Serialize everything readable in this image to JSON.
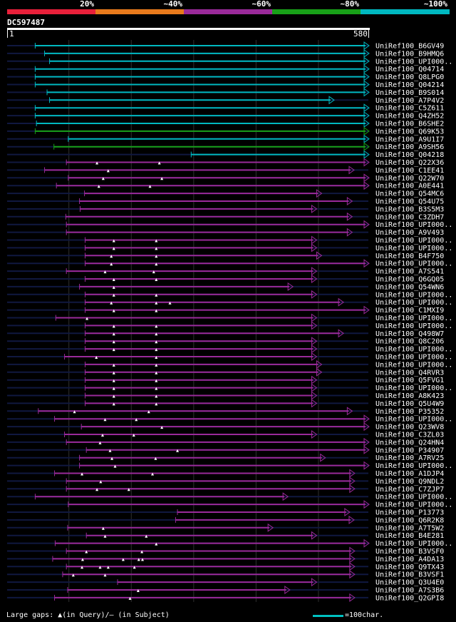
{
  "legend": {
    "segments": [
      {
        "label": "20%",
        "color": "#e8203a"
      },
      {
        "label": "~40%",
        "color": "#e87a1c"
      },
      {
        "label": "~60%",
        "color": "#9a2a9a"
      },
      {
        "label": "~80%",
        "color": "#18a018"
      },
      {
        "label": "~100%",
        "color": "#00b8c0"
      }
    ]
  },
  "query": {
    "id": "DC597487",
    "start": "1",
    "end": "580",
    "length": 580
  },
  "colors": {
    "background": "#000000",
    "grid": "#303030",
    "unaligned": "#101840",
    "text": "#ffffff"
  },
  "hits": [
    {
      "label": "UniRef100_B6GV49",
      "start": 46,
      "end": 580,
      "cls": 4,
      "gaps": []
    },
    {
      "label": "UniRef100_B9HMQ6",
      "start": 61,
      "end": 580,
      "cls": 4,
      "gaps": []
    },
    {
      "label": "UniRef100_UPI000..",
      "start": 69,
      "end": 580,
      "cls": 4,
      "gaps": []
    },
    {
      "label": "UniRef100_Q04714",
      "start": 46,
      "end": 580,
      "cls": 4,
      "gaps": []
    },
    {
      "label": "UniRef100_Q8LPG0",
      "start": 46,
      "end": 580,
      "cls": 4,
      "gaps": []
    },
    {
      "label": "UniRef100_Q04214",
      "start": 46,
      "end": 580,
      "cls": 4,
      "gaps": []
    },
    {
      "label": "UniRef100_B9S014",
      "start": 65,
      "end": 580,
      "cls": 4,
      "gaps": []
    },
    {
      "label": "UniRef100_A7P4V2",
      "start": 69,
      "end": 524,
      "cls": 4,
      "gaps": []
    },
    {
      "label": "UniRef100_C5Z611",
      "start": 46,
      "end": 580,
      "cls": 4,
      "gaps": []
    },
    {
      "label": "UniRef100_Q4ZH52",
      "start": 46,
      "end": 580,
      "cls": 4,
      "gaps": []
    },
    {
      "label": "UniRef100_B6SHE2",
      "start": 48,
      "end": 580,
      "cls": 4,
      "gaps": []
    },
    {
      "label": "UniRef100_Q69K53",
      "start": 46,
      "end": 580,
      "cls": 3,
      "gaps": []
    },
    {
      "label": "UniRef100_A9U1I7",
      "start": 99,
      "end": 580,
      "cls": 4,
      "gaps": []
    },
    {
      "label": "UniRef100_A9SH56",
      "start": 76,
      "end": 580,
      "cls": 3,
      "gaps": []
    },
    {
      "label": "UniRef100_Q04218",
      "start": 296,
      "end": 580,
      "cls": 4,
      "gaps": []
    },
    {
      "label": "UniRef100_Q22X36",
      "start": 96,
      "end": 580,
      "cls": 2,
      "gaps": [
        145,
        245
      ]
    },
    {
      "label": "UniRef100_C1EE41",
      "start": 61,
      "end": 556,
      "cls": 2,
      "gaps": [
        163
      ]
    },
    {
      "label": "UniRef100_Q22W70",
      "start": 99,
      "end": 580,
      "cls": 2,
      "gaps": [
        155,
        249
      ]
    },
    {
      "label": "UniRef100_A0E441",
      "start": 80,
      "end": 580,
      "cls": 2,
      "gaps": [
        148,
        230
      ]
    },
    {
      "label": "UniRef100_Q54MC6",
      "start": 125,
      "end": 504,
      "cls": 2,
      "gaps": []
    },
    {
      "label": "UniRef100_Q54U75",
      "start": 117,
      "end": 553,
      "cls": 2,
      "gaps": []
    },
    {
      "label": "UniRef100_B3S5M3",
      "start": 118,
      "end": 496,
      "cls": 2,
      "gaps": []
    },
    {
      "label": "UniRef100_C3ZDH7",
      "start": 95,
      "end": 553,
      "cls": 2,
      "gaps": []
    },
    {
      "label": "UniRef100_UPI000..",
      "start": 96,
      "end": 580,
      "cls": 2,
      "gaps": []
    },
    {
      "label": "UniRef100_A9V493",
      "start": 96,
      "end": 553,
      "cls": 2,
      "gaps": []
    },
    {
      "label": "UniRef100_UPI000..",
      "start": 126,
      "end": 496,
      "cls": 2,
      "gaps": [
        172,
        240
      ]
    },
    {
      "label": "UniRef100_UPI000..",
      "start": 126,
      "end": 496,
      "cls": 2,
      "gaps": [
        172,
        240
      ]
    },
    {
      "label": "UniRef100_B4F750",
      "start": 126,
      "end": 504,
      "cls": 2,
      "gaps": [
        168,
        240
      ]
    },
    {
      "label": "UniRef100_UPI000..",
      "start": 126,
      "end": 580,
      "cls": 2,
      "gaps": [
        168,
        240
      ]
    },
    {
      "label": "UniRef100_A7S541",
      "start": 96,
      "end": 496,
      "cls": 2,
      "gaps": [
        158,
        236
      ]
    },
    {
      "label": "UniRef100_Q6GQ05",
      "start": 126,
      "end": 496,
      "cls": 2,
      "gaps": [
        172,
        240
      ]
    },
    {
      "label": "UniRef100_Q54WN6",
      "start": 117,
      "end": 458,
      "cls": 2,
      "gaps": [
        172
      ]
    },
    {
      "label": "UniRef100_UPI000..",
      "start": 126,
      "end": 496,
      "cls": 2,
      "gaps": [
        172,
        240
      ]
    },
    {
      "label": "UniRef100_UPI000..",
      "start": 126,
      "end": 539,
      "cls": 2,
      "gaps": [
        168,
        240,
        262
      ]
    },
    {
      "label": "UniRef100_C1MXI9",
      "start": 126,
      "end": 580,
      "cls": 2,
      "gaps": [
        172,
        240
      ]
    },
    {
      "label": "UniRef100_UPI000..",
      "start": 79,
      "end": 496,
      "cls": 2,
      "gaps": [
        129
      ]
    },
    {
      "label": "UniRef100_UPI000..",
      "start": 126,
      "end": 496,
      "cls": 2,
      "gaps": [
        172,
        240
      ]
    },
    {
      "label": "UniRef100_Q498W7",
      "start": 126,
      "end": 539,
      "cls": 2,
      "gaps": [
        172,
        240
      ]
    },
    {
      "label": "UniRef100_Q8C206",
      "start": 126,
      "end": 496,
      "cls": 2,
      "gaps": [
        172,
        240
      ]
    },
    {
      "label": "UniRef100_UPI000..",
      "start": 126,
      "end": 496,
      "cls": 2,
      "gaps": [
        172,
        240
      ]
    },
    {
      "label": "UniRef100_UPI000..",
      "start": 93,
      "end": 496,
      "cls": 2,
      "gaps": [
        144,
        240
      ]
    },
    {
      "label": "UniRef100_UPI000..",
      "start": 126,
      "end": 504,
      "cls": 2,
      "gaps": [
        172,
        240
      ]
    },
    {
      "label": "UniRef100_Q4RVR3",
      "start": 126,
      "end": 504,
      "cls": 2,
      "gaps": [
        172,
        240
      ]
    },
    {
      "label": "UniRef100_Q5FVG1",
      "start": 126,
      "end": 496,
      "cls": 2,
      "gaps": [
        172,
        240
      ]
    },
    {
      "label": "UniRef100_UPI000..",
      "start": 126,
      "end": 496,
      "cls": 2,
      "gaps": [
        172,
        240
      ]
    },
    {
      "label": "UniRef100_A8K423",
      "start": 126,
      "end": 496,
      "cls": 2,
      "gaps": [
        172,
        240
      ]
    },
    {
      "label": "UniRef100_Q5U4W9",
      "start": 126,
      "end": 496,
      "cls": 2,
      "gaps": [
        172,
        240
      ]
    },
    {
      "label": "UniRef100_P35352",
      "start": 51,
      "end": 553,
      "cls": 2,
      "gaps": [
        109,
        228
      ]
    },
    {
      "label": "UniRef100_UPI000..",
      "start": 77,
      "end": 580,
      "cls": 2,
      "gaps": [
        158,
        208
      ]
    },
    {
      "label": "UniRef100_Q23WV8",
      "start": 120,
      "end": 580,
      "cls": 2,
      "gaps": [
        249
      ]
    },
    {
      "label": "UniRef100_C3ZL03",
      "start": 93,
      "end": 496,
      "cls": 2,
      "gaps": [
        154,
        204
      ]
    },
    {
      "label": "UniRef100_Q24HN4",
      "start": 96,
      "end": 580,
      "cls": 2,
      "gaps": [
        150
      ]
    },
    {
      "label": "UniRef100_P34907",
      "start": 128,
      "end": 580,
      "cls": 2,
      "gaps": [
        166,
        274
      ]
    },
    {
      "label": "UniRef100_A7RV25",
      "start": 117,
      "end": 510,
      "cls": 2,
      "gaps": [
        169,
        239
      ]
    },
    {
      "label": "UniRef100_UPI000..",
      "start": 117,
      "end": 580,
      "cls": 2,
      "gaps": [
        174
      ]
    },
    {
      "label": "UniRef100_A1DJP4",
      "start": 77,
      "end": 557,
      "cls": 2,
      "gaps": [
        121,
        234
      ]
    },
    {
      "label": "UniRef100_Q9NDL2",
      "start": 96,
      "end": 557,
      "cls": 2,
      "gaps": [
        151
      ]
    },
    {
      "label": "UniRef100_C7ZJP7",
      "start": 96,
      "end": 557,
      "cls": 2,
      "gaps": [
        145,
        196
      ]
    },
    {
      "label": "UniRef100_UPI000..",
      "start": 46,
      "end": 450,
      "cls": 2,
      "gaps": []
    },
    {
      "label": "UniRef100_UPI000..",
      "start": 99,
      "end": 580,
      "cls": 2,
      "gaps": []
    },
    {
      "label": "UniRef100_P13773",
      "start": 274,
      "end": 549,
      "cls": 2,
      "gaps": []
    },
    {
      "label": "UniRef100_Q6R2K8",
      "start": 271,
      "end": 556,
      "cls": 2,
      "gaps": []
    },
    {
      "label": "UniRef100_A7T5W2",
      "start": 98,
      "end": 426,
      "cls": 2,
      "gaps": [
        155
      ]
    },
    {
      "label": "UniRef100_B4E281",
      "start": 128,
      "end": 496,
      "cls": 2,
      "gaps": [
        158,
        224
      ]
    },
    {
      "label": "UniRef100_UPI000..",
      "start": 78,
      "end": 580,
      "cls": 2,
      "gaps": [
        240
      ]
    },
    {
      "label": "UniRef100_B3VSF0",
      "start": 96,
      "end": 557,
      "cls": 2,
      "gaps": [
        128,
        217
      ]
    },
    {
      "label": "UniRef100_A4DA13",
      "start": 74,
      "end": 557,
      "cls": 2,
      "gaps": [
        122,
        187,
        212,
        218
      ]
    },
    {
      "label": "UniRef100_Q9TX43",
      "start": 96,
      "end": 557,
      "cls": 2,
      "gaps": [
        121,
        150,
        163,
        205
      ]
    },
    {
      "label": "UniRef100_B3VSF1",
      "start": 90,
      "end": 557,
      "cls": 2,
      "gaps": [
        107,
        158
      ]
    },
    {
      "label": "UniRef100_Q3U4E0",
      "start": 178,
      "end": 496,
      "cls": 2,
      "gaps": []
    },
    {
      "label": "UniRef100_A7S3B6",
      "start": 98,
      "end": 453,
      "cls": 2,
      "gaps": [
        211
      ]
    },
    {
      "label": "UniRef100_Q2GPI8",
      "start": 77,
      "end": 557,
      "cls": 2,
      "gaps": [
        198
      ]
    }
  ],
  "footer": {
    "gap_legend": "Large gaps: ▲(in Query)/– (in Subject)",
    "scale_legend": "=100char."
  }
}
